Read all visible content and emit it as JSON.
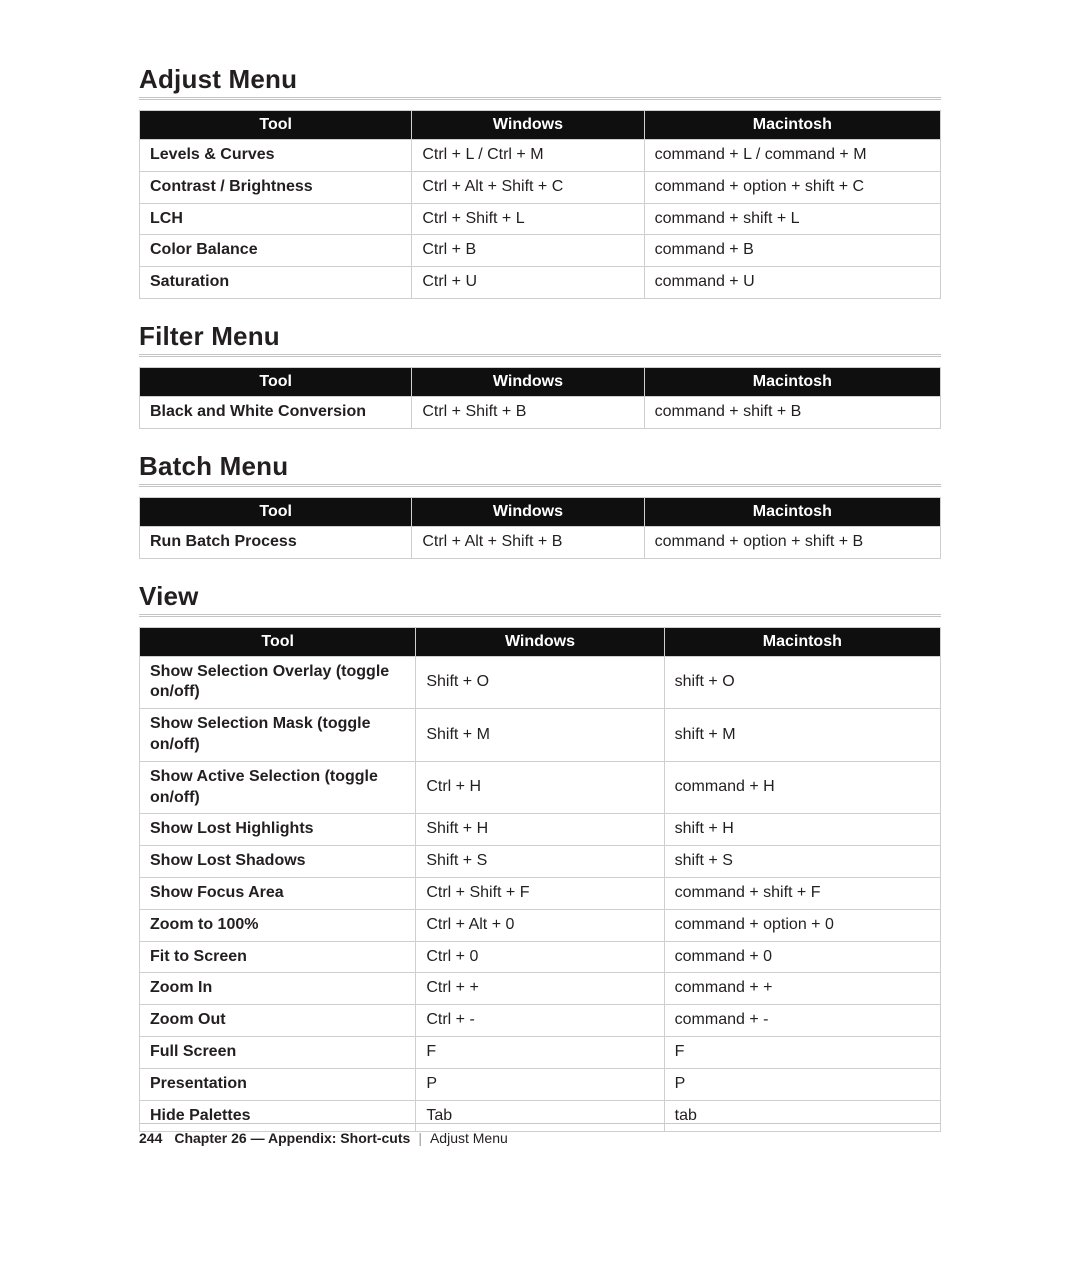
{
  "columns": [
    "Tool",
    "Windows",
    "Macintosh"
  ],
  "sections": [
    {
      "title": "Adjust Menu",
      "rows": [
        [
          "Levels & Curves",
          "Ctrl + L / Ctrl + M",
          "command + L / command + M"
        ],
        [
          "Contrast / Brightness",
          "Ctrl + Alt + Shift + C",
          "command + option + shift + C"
        ],
        [
          "LCH",
          "Ctrl + Shift + L",
          "command + shift + L"
        ],
        [
          "Color Balance",
          "Ctrl + B",
          "command + B"
        ],
        [
          "Saturation",
          "Ctrl + U",
          "command + U"
        ]
      ]
    },
    {
      "title": "Filter Menu",
      "rows": [
        [
          "Black and White Conversion",
          "Ctrl + Shift + B",
          "command + shift + B"
        ]
      ]
    },
    {
      "title": "Batch Menu",
      "rows": [
        [
          "Run Batch Process",
          "Ctrl + Alt + Shift + B",
          "command + option + shift + B"
        ]
      ]
    },
    {
      "title": "View",
      "view": true,
      "rows": [
        [
          "Show Selection Overlay (toggle on/off)",
          "Shift + O",
          "shift + O"
        ],
        [
          "Show Selection Mask (toggle on/off)",
          "Shift + M",
          "shift + M"
        ],
        [
          "Show Active Selection (toggle on/off)",
          "Ctrl + H",
          "command + H"
        ],
        [
          "Show Lost Highlights",
          "Shift + H",
          "shift + H"
        ],
        [
          "Show Lost Shadows",
          "Shift + S",
          "shift + S"
        ],
        [
          "Show Focus Area",
          "Ctrl + Shift + F",
          "command + shift + F"
        ],
        [
          "Zoom to 100%",
          "Ctrl + Alt + 0",
          "command + option + 0"
        ],
        [
          "Fit to Screen",
          "Ctrl + 0",
          "command + 0"
        ],
        [
          "Zoom In",
          "Ctrl + +",
          "command + +"
        ],
        [
          "Zoom Out",
          "Ctrl + -",
          "command + -"
        ],
        [
          "Full Screen",
          "F",
          "F"
        ],
        [
          "Presentation",
          "P",
          "P"
        ],
        [
          "Hide Palettes",
          "Tab",
          "tab"
        ]
      ]
    }
  ],
  "footer": {
    "page": "244",
    "chapter": "Chapter 26 — Appendix: Short-cuts",
    "current": "Adjust Menu"
  },
  "style": {
    "header_bg": "#0f0f0f",
    "header_fg": "#ffffff",
    "border_color": "#cfcfcf",
    "text_color": "#231f20",
    "title_fontsize": 26,
    "body_fontsize": 16,
    "footer_fontsize": 14
  }
}
